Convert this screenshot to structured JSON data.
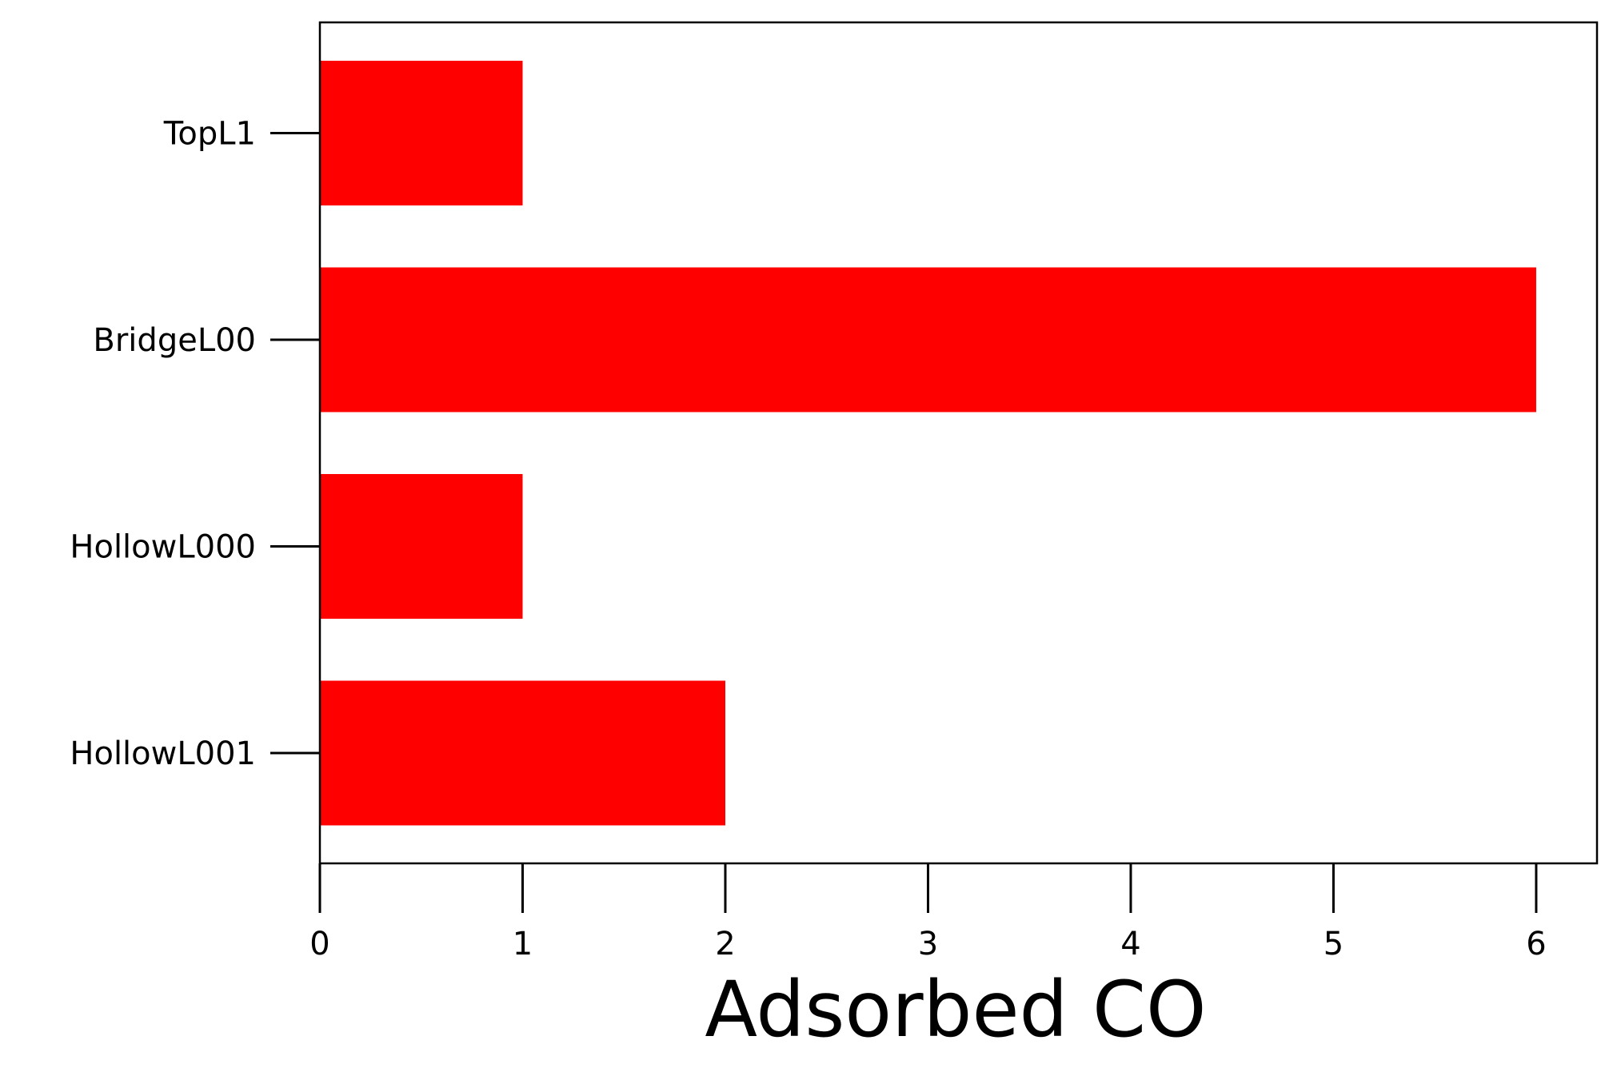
{
  "chart_data": {
    "type": "bar",
    "orientation": "horizontal",
    "categories": [
      "TopL1",
      "BridgeL00",
      "HollowL000",
      "HollowL001"
    ],
    "values": [
      1,
      6,
      1,
      2
    ],
    "title": "",
    "xlabel": "Adsorbed CO",
    "ylabel": "",
    "xlim": [
      0,
      6.3
    ],
    "xticks": [
      "0",
      "1",
      "2",
      "3",
      "4",
      "5",
      "6"
    ],
    "grid": false,
    "legend": "none",
    "bar_color": "#ff0000"
  }
}
